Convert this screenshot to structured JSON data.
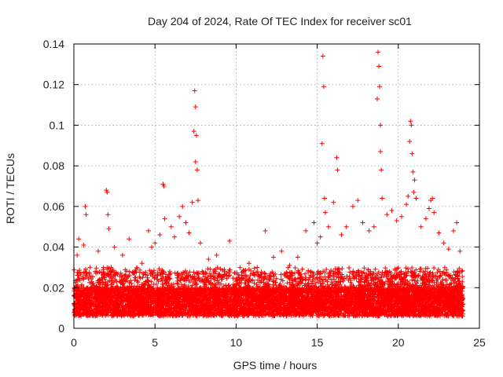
{
  "chart_data": {
    "type": "scatter",
    "title": "Day 204 of 2024, Rate Of TEC Index for receiver sc01",
    "xlabel": "GPS time / hours",
    "ylabel": "ROTI / TECUs",
    "xlim": [
      0,
      25
    ],
    "ylim": [
      0,
      0.14
    ],
    "xticks": [
      0,
      5,
      10,
      15,
      20,
      25
    ],
    "yticks": [
      0,
      0.02,
      0.04,
      0.06,
      0.08,
      0.1,
      0.12,
      0.14
    ],
    "xtick_labels": [
      "0",
      "5",
      "10",
      "15",
      "20",
      "25"
    ],
    "ytick_labels": [
      "0",
      "0.02",
      "0.04",
      "0.06",
      "0.08",
      "0.1",
      "0.12",
      "0.14"
    ],
    "grid": true,
    "marker": "+",
    "color": "#ff0000",
    "series": [
      {
        "name": "ROTI",
        "points": [
          [
            0.1,
            0.012
          ],
          [
            0.2,
            0.036
          ],
          [
            0.3,
            0.044
          ],
          [
            0.6,
            0.041
          ],
          [
            0.7,
            0.06
          ],
          [
            0.75,
            0.056
          ],
          [
            1.0,
            0.03
          ],
          [
            1.2,
            0.022
          ],
          [
            1.5,
            0.038
          ],
          [
            1.8,
            0.026
          ],
          [
            2.0,
            0.068
          ],
          [
            2.05,
            0.067
          ],
          [
            2.1,
            0.056
          ],
          [
            2.15,
            0.049
          ],
          [
            2.3,
            0.03
          ],
          [
            2.5,
            0.04
          ],
          [
            3.0,
            0.036
          ],
          [
            3.4,
            0.044
          ],
          [
            3.8,
            0.025
          ],
          [
            4.2,
            0.032
          ],
          [
            4.6,
            0.048
          ],
          [
            4.8,
            0.04
          ],
          [
            5.0,
            0.042
          ],
          [
            5.3,
            0.046
          ],
          [
            5.5,
            0.071
          ],
          [
            5.55,
            0.07
          ],
          [
            5.6,
            0.054
          ],
          [
            6.0,
            0.05
          ],
          [
            6.2,
            0.045
          ],
          [
            6.5,
            0.055
          ],
          [
            6.7,
            0.06
          ],
          [
            6.9,
            0.052
          ],
          [
            7.1,
            0.047
          ],
          [
            7.3,
            0.062
          ],
          [
            7.4,
            0.097
          ],
          [
            7.45,
            0.117
          ],
          [
            7.5,
            0.109
          ],
          [
            7.5,
            0.082
          ],
          [
            7.55,
            0.095
          ],
          [
            7.6,
            0.078
          ],
          [
            7.65,
            0.063
          ],
          [
            7.8,
            0.042
          ],
          [
            8.3,
            0.034
          ],
          [
            8.8,
            0.036
          ],
          [
            9.3,
            0.028
          ],
          [
            9.6,
            0.043
          ],
          [
            10.2,
            0.024
          ],
          [
            10.8,
            0.032
          ],
          [
            11.3,
            0.03
          ],
          [
            11.8,
            0.048
          ],
          [
            12.3,
            0.035
          ],
          [
            12.8,
            0.038
          ],
          [
            13.3,
            0.031
          ],
          [
            13.8,
            0.035
          ],
          [
            14.3,
            0.048
          ],
          [
            14.8,
            0.052
          ],
          [
            15.0,
            0.042
          ],
          [
            15.2,
            0.045
          ],
          [
            15.3,
            0.091
          ],
          [
            15.35,
            0.134
          ],
          [
            15.4,
            0.119
          ],
          [
            15.45,
            0.064
          ],
          [
            15.5,
            0.057
          ],
          [
            15.7,
            0.05
          ],
          [
            16.0,
            0.062
          ],
          [
            16.2,
            0.084
          ],
          [
            16.25,
            0.078
          ],
          [
            16.5,
            0.046
          ],
          [
            16.8,
            0.05
          ],
          [
            17.2,
            0.06
          ],
          [
            17.5,
            0.063
          ],
          [
            17.8,
            0.052
          ],
          [
            18.2,
            0.048
          ],
          [
            18.5,
            0.05
          ],
          [
            18.7,
            0.113
          ],
          [
            18.75,
            0.136
          ],
          [
            18.8,
            0.129
          ],
          [
            18.85,
            0.119
          ],
          [
            18.9,
            0.1
          ],
          [
            18.9,
            0.087
          ],
          [
            18.95,
            0.078
          ],
          [
            19.0,
            0.064
          ],
          [
            19.3,
            0.056
          ],
          [
            19.6,
            0.058
          ],
          [
            19.9,
            0.053
          ],
          [
            20.2,
            0.055
          ],
          [
            20.5,
            0.061
          ],
          [
            20.6,
            0.065
          ],
          [
            20.7,
            0.092
          ],
          [
            20.75,
            0.102
          ],
          [
            20.8,
            0.1
          ],
          [
            20.85,
            0.086
          ],
          [
            20.9,
            0.077
          ],
          [
            20.95,
            0.067
          ],
          [
            21.0,
            0.073
          ],
          [
            21.1,
            0.064
          ],
          [
            21.4,
            0.05
          ],
          [
            21.7,
            0.054
          ],
          [
            21.9,
            0.059
          ],
          [
            22.0,
            0.063
          ],
          [
            22.1,
            0.064
          ],
          [
            22.2,
            0.057
          ],
          [
            22.5,
            0.047
          ],
          [
            22.8,
            0.042
          ],
          [
            23.1,
            0.039
          ],
          [
            23.4,
            0.048
          ],
          [
            23.6,
            0.052
          ],
          [
            23.8,
            0.038
          ],
          [
            23.9,
            0.028
          ],
          [
            24.0,
            0.012
          ]
        ]
      }
    ]
  }
}
